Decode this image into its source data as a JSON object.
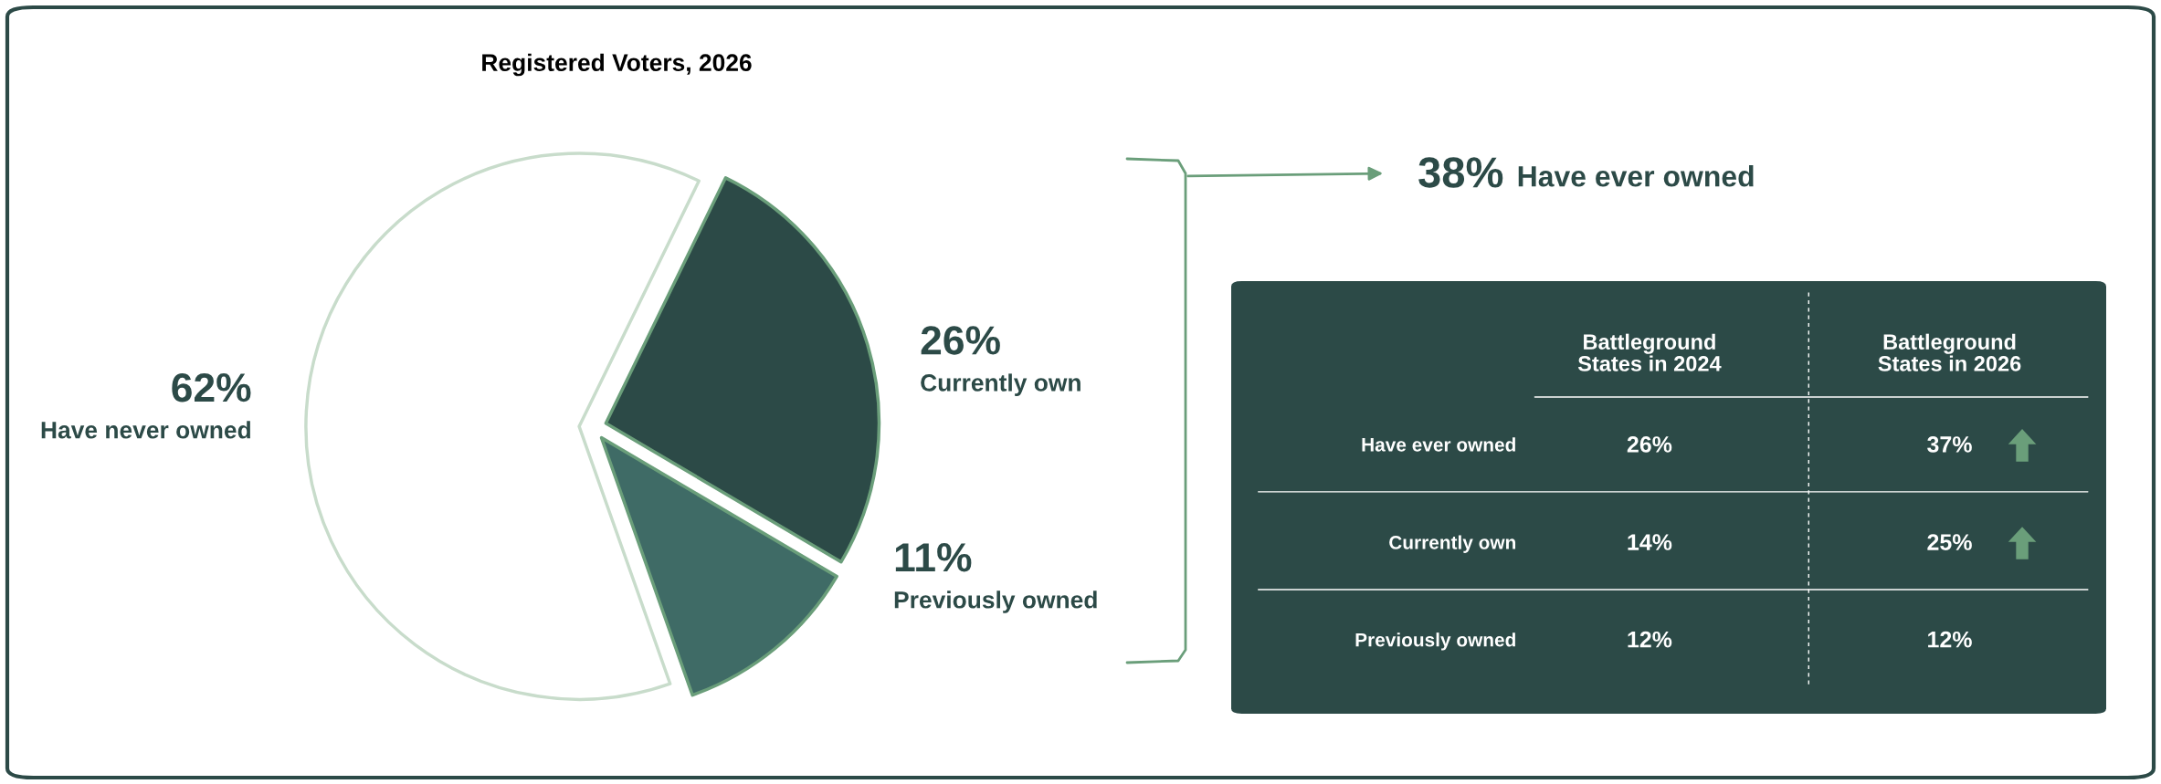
{
  "chart_data": [
    {
      "type": "pie",
      "title": "Registered Voters, 2026",
      "categories": [
        "Currently own",
        "Previously owned",
        "Have never owned"
      ],
      "values": [
        26,
        11,
        62
      ],
      "colors": [
        "#2c4a47",
        "#3f6b66",
        "#ffffff"
      ],
      "value_labels": [
        "26%",
        "11%",
        "62%"
      ],
      "annotations": [
        "38%",
        "Have ever owned"
      ]
    },
    {
      "type": "other",
      "annotations": [
        "Battleground\nStates in 2024",
        "Battleground\nStates in 2026",
        "Have ever owned",
        "26%",
        "37%",
        "Currently own",
        "14%",
        "25%",
        "Previously owned",
        "12%",
        "12%"
      ]
    }
  ]
}
